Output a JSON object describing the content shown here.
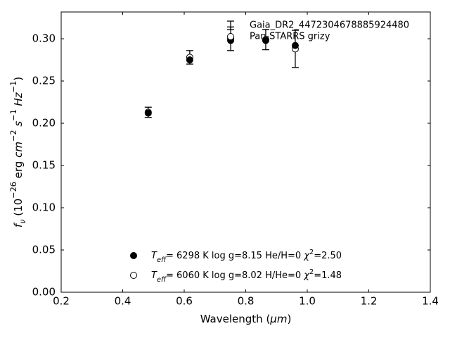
{
  "chart_data": {
    "type": "errorbar_scatter",
    "x": [
      0.483,
      0.618,
      0.751,
      0.865,
      0.961
    ],
    "series": [
      {
        "name": "Pan-STARRS grizy",
        "marker": "open",
        "color": "#000000",
        "values": [
          0.213,
          0.278,
          0.3,
          0.299,
          0.288
        ],
        "errors": [
          0.006,
          0.008,
          0.014,
          0.012,
          0.022
        ]
      },
      {
        "marker": "filled",
        "color": "#000000",
        "values": [
          0.212,
          0.275,
          0.298,
          0.298,
          0.292
        ]
      }
    ],
    "errorbar_legend": "Gaia_DR2_4472304678885924480",
    "models": [
      {
        "marker": "filled",
        "parts": [
          {
            "t": "T",
            "i": true
          },
          {
            "t": "eff",
            "i": true,
            "sub": true
          },
          {
            "t": "=  6298 K  log g=8.15  He/H=0  "
          },
          {
            "t": "χ",
            "i": true
          },
          {
            "t": "2",
            "sup": true
          },
          {
            "t": "=2.50"
          }
        ]
      },
      {
        "marker": "open",
        "parts": [
          {
            "t": "T",
            "i": true
          },
          {
            "t": "eff",
            "i": true,
            "sub": true
          },
          {
            "t": "=  6060 K  log g=8.02  H/He=0  "
          },
          {
            "t": "χ",
            "i": true
          },
          {
            "t": "2",
            "sup": true
          },
          {
            "t": "=1.48"
          }
        ]
      }
    ],
    "xlabel": [
      {
        "t": "Wavelength ("
      },
      {
        "t": "μm",
        "i": true
      },
      {
        "t": ")"
      }
    ],
    "ylabel": [
      {
        "t": "f",
        "i": true
      },
      {
        "t": "ν",
        "i": true,
        "sub": true
      },
      {
        "t": " (10"
      },
      {
        "t": "−26",
        "sup": true
      },
      {
        "t": " erg "
      },
      {
        "t": "cm",
        "i": true
      },
      {
        "t": "−2",
        "sup": true
      },
      {
        "t": " "
      },
      {
        "t": "s",
        "i": true
      },
      {
        "t": "−1",
        "sup": true
      },
      {
        "t": " "
      },
      {
        "t": "Hz",
        "i": true
      },
      {
        "t": "−1",
        "sup": true
      },
      {
        "t": ")"
      }
    ],
    "xlim": [
      0.2,
      1.4
    ],
    "xticks": [
      0.2,
      0.4,
      0.6,
      0.8,
      {
        "value": 1.0,
        "label": "1.0"
      },
      1.2,
      1.4
    ],
    "ylim": [
      0,
      0.3317
    ],
    "yticks": [
      {
        "value": 0,
        "label": "0.00"
      },
      0.05,
      {
        "value": 0.1,
        "label": "0.10"
      },
      0.15,
      {
        "value": 0.2,
        "label": "0.20"
      },
      0.25,
      {
        "value": 0.3,
        "label": "0.30"
      }
    ]
  }
}
